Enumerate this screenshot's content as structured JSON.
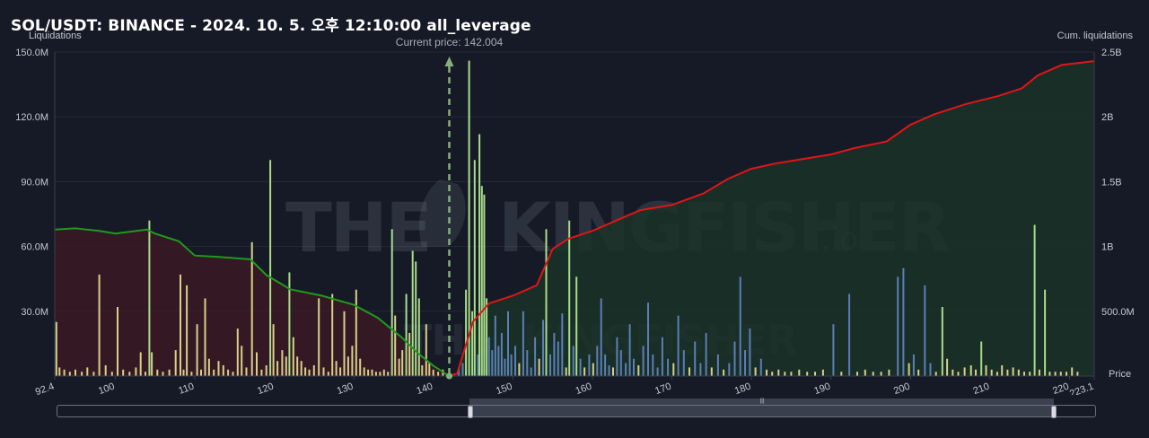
{
  "title": "SOL/USDT: BINANCE - 2024. 10. 5. 오후 12:10:00 all_leverage",
  "chart_data": {
    "type": "bar",
    "left_axis_label": "Liquidations",
    "right_axis_label": "Cum. liquidations",
    "x_axis_label": "Price",
    "current_price_label": "Current price: 142.004",
    "current_price": 142.004,
    "x_range": [
      92.4,
      223.1
    ],
    "x_ticks": [
      "92.4",
      "100",
      "110",
      "120",
      "130",
      "140",
      "150",
      "160",
      "170",
      "180",
      "190",
      "200",
      "210",
      "220",
      "223.1"
    ],
    "x_tick_values": [
      92.4,
      100,
      110,
      120,
      130,
      140,
      150,
      160,
      170,
      180,
      190,
      200,
      210,
      220,
      223.1
    ],
    "left_ylim": [
      0,
      150
    ],
    "left_ticks": [
      "30.0M",
      "60.0M",
      "90.0M",
      "120.0M",
      "150.0M"
    ],
    "left_tick_values": [
      30,
      60,
      90,
      120,
      150
    ],
    "right_ylim": [
      0,
      2.5
    ],
    "right_ticks": [
      "500.0M",
      "1B",
      "1.5B",
      "2B",
      "2.5B"
    ],
    "right_tick_values": [
      0.5,
      1,
      1.5,
      2,
      2.5
    ],
    "bars": [
      {
        "x": 92.6,
        "v": 25,
        "c": "gold"
      },
      {
        "x": 93.0,
        "v": 4,
        "c": "gold"
      },
      {
        "x": 93.6,
        "v": 3,
        "c": "gold"
      },
      {
        "x": 94.3,
        "v": 2,
        "c": "gold"
      },
      {
        "x": 95.0,
        "v": 3,
        "c": "gold"
      },
      {
        "x": 95.8,
        "v": 2,
        "c": "gold"
      },
      {
        "x": 96.5,
        "v": 4,
        "c": "gold"
      },
      {
        "x": 97.3,
        "v": 2,
        "c": "gold"
      },
      {
        "x": 98.0,
        "v": 47,
        "c": "gold"
      },
      {
        "x": 98.8,
        "v": 5,
        "c": "gold"
      },
      {
        "x": 99.6,
        "v": 2,
        "c": "gold"
      },
      {
        "x": 100.3,
        "v": 32,
        "c": "gold"
      },
      {
        "x": 101.0,
        "v": 3,
        "c": "gold"
      },
      {
        "x": 101.8,
        "v": 2,
        "c": "gold"
      },
      {
        "x": 102.6,
        "v": 4,
        "c": "gold"
      },
      {
        "x": 103.2,
        "v": 11,
        "c": "gold"
      },
      {
        "x": 103.8,
        "v": 2,
        "c": "gold"
      },
      {
        "x": 104.3,
        "v": 72,
        "c": "green"
      },
      {
        "x": 104.6,
        "v": 11,
        "c": "gold"
      },
      {
        "x": 105.3,
        "v": 3,
        "c": "gold"
      },
      {
        "x": 106.0,
        "v": 2,
        "c": "gold"
      },
      {
        "x": 106.8,
        "v": 3,
        "c": "gold"
      },
      {
        "x": 107.6,
        "v": 12,
        "c": "gold"
      },
      {
        "x": 108.2,
        "v": 47,
        "c": "gold"
      },
      {
        "x": 108.6,
        "v": 3,
        "c": "gold"
      },
      {
        "x": 109.0,
        "v": 42,
        "c": "gold"
      },
      {
        "x": 109.6,
        "v": 2,
        "c": "gold"
      },
      {
        "x": 110.3,
        "v": 24,
        "c": "gold"
      },
      {
        "x": 110.8,
        "v": 3,
        "c": "gold"
      },
      {
        "x": 111.3,
        "v": 36,
        "c": "gold"
      },
      {
        "x": 111.8,
        "v": 8,
        "c": "gold"
      },
      {
        "x": 112.4,
        "v": 3,
        "c": "gold"
      },
      {
        "x": 113.0,
        "v": 7,
        "c": "gold"
      },
      {
        "x": 113.6,
        "v": 5,
        "c": "gold"
      },
      {
        "x": 114.2,
        "v": 3,
        "c": "gold"
      },
      {
        "x": 114.8,
        "v": 2,
        "c": "gold"
      },
      {
        "x": 115.4,
        "v": 22,
        "c": "gold"
      },
      {
        "x": 115.9,
        "v": 14,
        "c": "gold"
      },
      {
        "x": 116.5,
        "v": 4,
        "c": "gold"
      },
      {
        "x": 117.2,
        "v": 62,
        "c": "gold"
      },
      {
        "x": 117.8,
        "v": 11,
        "c": "gold"
      },
      {
        "x": 118.4,
        "v": 3,
        "c": "gold"
      },
      {
        "x": 119.0,
        "v": 5,
        "c": "gold"
      },
      {
        "x": 119.5,
        "v": 100,
        "c": "green"
      },
      {
        "x": 119.9,
        "v": 24,
        "c": "gold"
      },
      {
        "x": 120.4,
        "v": 7,
        "c": "gold"
      },
      {
        "x": 121.0,
        "v": 12,
        "c": "gold"
      },
      {
        "x": 121.5,
        "v": 9,
        "c": "gold"
      },
      {
        "x": 121.9,
        "v": 48,
        "c": "green"
      },
      {
        "x": 122.4,
        "v": 18,
        "c": "gold"
      },
      {
        "x": 122.9,
        "v": 9,
        "c": "gold"
      },
      {
        "x": 123.4,
        "v": 7,
        "c": "gold"
      },
      {
        "x": 123.9,
        "v": 4,
        "c": "gold"
      },
      {
        "x": 124.4,
        "v": 3,
        "c": "gold"
      },
      {
        "x": 125.0,
        "v": 5,
        "c": "gold"
      },
      {
        "x": 125.6,
        "v": 36,
        "c": "gold"
      },
      {
        "x": 126.2,
        "v": 4,
        "c": "gold"
      },
      {
        "x": 126.8,
        "v": 2,
        "c": "gold"
      },
      {
        "x": 127.3,
        "v": 38,
        "c": "gold"
      },
      {
        "x": 127.8,
        "v": 7,
        "c": "gold"
      },
      {
        "x": 128.3,
        "v": 4,
        "c": "gold"
      },
      {
        "x": 128.8,
        "v": 30,
        "c": "gold"
      },
      {
        "x": 129.3,
        "v": 9,
        "c": "gold"
      },
      {
        "x": 129.8,
        "v": 14,
        "c": "gold"
      },
      {
        "x": 130.3,
        "v": 40,
        "c": "gold"
      },
      {
        "x": 130.8,
        "v": 8,
        "c": "gold"
      },
      {
        "x": 131.3,
        "v": 4,
        "c": "gold"
      },
      {
        "x": 131.8,
        "v": 3,
        "c": "gold"
      },
      {
        "x": 132.3,
        "v": 3,
        "c": "gold"
      },
      {
        "x": 132.8,
        "v": 2,
        "c": "gold"
      },
      {
        "x": 133.3,
        "v": 2,
        "c": "gold"
      },
      {
        "x": 133.8,
        "v": 3,
        "c": "gold"
      },
      {
        "x": 134.3,
        "v": 2,
        "c": "gold"
      },
      {
        "x": 134.8,
        "v": 68,
        "c": "green"
      },
      {
        "x": 135.2,
        "v": 28,
        "c": "gold"
      },
      {
        "x": 135.7,
        "v": 8,
        "c": "gold"
      },
      {
        "x": 136.1,
        "v": 12,
        "c": "gold"
      },
      {
        "x": 136.6,
        "v": 38,
        "c": "green"
      },
      {
        "x": 137.0,
        "v": 20,
        "c": "gold"
      },
      {
        "x": 137.4,
        "v": 58,
        "c": "green"
      },
      {
        "x": 137.8,
        "v": 53,
        "c": "green"
      },
      {
        "x": 138.2,
        "v": 36,
        "c": "green"
      },
      {
        "x": 138.6,
        "v": 5,
        "c": "gold"
      },
      {
        "x": 139.1,
        "v": 24,
        "c": "gold"
      },
      {
        "x": 139.5,
        "v": 6,
        "c": "gold"
      },
      {
        "x": 140.0,
        "v": 3,
        "c": "gold"
      },
      {
        "x": 140.6,
        "v": 2,
        "c": "gold"
      },
      {
        "x": 141.2,
        "v": 3,
        "c": "gold"
      },
      {
        "x": 143.2,
        "v": 4,
        "c": "blue"
      },
      {
        "x": 143.7,
        "v": 6,
        "c": "blue"
      },
      {
        "x": 144.1,
        "v": 40,
        "c": "green"
      },
      {
        "x": 144.5,
        "v": 146,
        "c": "green"
      },
      {
        "x": 144.9,
        "v": 30,
        "c": "green"
      },
      {
        "x": 145.2,
        "v": 100,
        "c": "green"
      },
      {
        "x": 145.6,
        "v": 10,
        "c": "blue"
      },
      {
        "x": 145.8,
        "v": 112,
        "c": "green"
      },
      {
        "x": 146.1,
        "v": 88,
        "c": "green"
      },
      {
        "x": 146.4,
        "v": 84,
        "c": "green"
      },
      {
        "x": 146.7,
        "v": 36,
        "c": "green"
      },
      {
        "x": 147.0,
        "v": 18,
        "c": "blue"
      },
      {
        "x": 147.4,
        "v": 12,
        "c": "blue"
      },
      {
        "x": 147.8,
        "v": 28,
        "c": "blue"
      },
      {
        "x": 148.2,
        "v": 14,
        "c": "blue"
      },
      {
        "x": 148.6,
        "v": 20,
        "c": "blue"
      },
      {
        "x": 149.0,
        "v": 8,
        "c": "blue"
      },
      {
        "x": 149.4,
        "v": 30,
        "c": "blue"
      },
      {
        "x": 149.8,
        "v": 10,
        "c": "blue"
      },
      {
        "x": 150.3,
        "v": 14,
        "c": "blue"
      },
      {
        "x": 150.8,
        "v": 6,
        "c": "gold"
      },
      {
        "x": 151.3,
        "v": 30,
        "c": "blue"
      },
      {
        "x": 151.8,
        "v": 12,
        "c": "blue"
      },
      {
        "x": 152.3,
        "v": 4,
        "c": "blue"
      },
      {
        "x": 152.8,
        "v": 18,
        "c": "blue"
      },
      {
        "x": 153.3,
        "v": 8,
        "c": "gold"
      },
      {
        "x": 153.8,
        "v": 26,
        "c": "blue"
      },
      {
        "x": 154.2,
        "v": 68,
        "c": "green"
      },
      {
        "x": 154.7,
        "v": 10,
        "c": "blue"
      },
      {
        "x": 155.2,
        "v": 20,
        "c": "blue"
      },
      {
        "x": 155.7,
        "v": 16,
        "c": "blue"
      },
      {
        "x": 156.2,
        "v": 29,
        "c": "blue"
      },
      {
        "x": 156.7,
        "v": 4,
        "c": "gold"
      },
      {
        "x": 157.1,
        "v": 72,
        "c": "green"
      },
      {
        "x": 157.6,
        "v": 14,
        "c": "blue"
      },
      {
        "x": 158.0,
        "v": 46,
        "c": "green"
      },
      {
        "x": 158.5,
        "v": 8,
        "c": "blue"
      },
      {
        "x": 159.0,
        "v": 4,
        "c": "gold"
      },
      {
        "x": 159.6,
        "v": 10,
        "c": "blue"
      },
      {
        "x": 160.1,
        "v": 6,
        "c": "gold"
      },
      {
        "x": 160.6,
        "v": 14,
        "c": "blue"
      },
      {
        "x": 161.1,
        "v": 36,
        "c": "blue"
      },
      {
        "x": 161.6,
        "v": 10,
        "c": "blue"
      },
      {
        "x": 162.1,
        "v": 5,
        "c": "blue"
      },
      {
        "x": 162.6,
        "v": 4,
        "c": "gold"
      },
      {
        "x": 163.1,
        "v": 18,
        "c": "blue"
      },
      {
        "x": 163.6,
        "v": 12,
        "c": "blue"
      },
      {
        "x": 164.2,
        "v": 6,
        "c": "blue"
      },
      {
        "x": 164.7,
        "v": 24,
        "c": "blue"
      },
      {
        "x": 165.2,
        "v": 8,
        "c": "blue"
      },
      {
        "x": 165.8,
        "v": 5,
        "c": "gold"
      },
      {
        "x": 166.4,
        "v": 14,
        "c": "blue"
      },
      {
        "x": 167.0,
        "v": 34,
        "c": "blue"
      },
      {
        "x": 167.6,
        "v": 10,
        "c": "blue"
      },
      {
        "x": 168.2,
        "v": 4,
        "c": "blue"
      },
      {
        "x": 168.8,
        "v": 18,
        "c": "blue"
      },
      {
        "x": 169.5,
        "v": 8,
        "c": "blue"
      },
      {
        "x": 170.2,
        "v": 6,
        "c": "gold"
      },
      {
        "x": 170.8,
        "v": 28,
        "c": "blue"
      },
      {
        "x": 171.5,
        "v": 12,
        "c": "blue"
      },
      {
        "x": 172.2,
        "v": 4,
        "c": "gold"
      },
      {
        "x": 172.9,
        "v": 16,
        "c": "blue"
      },
      {
        "x": 173.6,
        "v": 6,
        "c": "blue"
      },
      {
        "x": 174.3,
        "v": 20,
        "c": "blue"
      },
      {
        "x": 175.0,
        "v": 4,
        "c": "gold"
      },
      {
        "x": 175.8,
        "v": 10,
        "c": "blue"
      },
      {
        "x": 176.5,
        "v": 3,
        "c": "gold"
      },
      {
        "x": 177.2,
        "v": 6,
        "c": "blue"
      },
      {
        "x": 177.9,
        "v": 16,
        "c": "blue"
      },
      {
        "x": 178.6,
        "v": 46,
        "c": "blue"
      },
      {
        "x": 179.2,
        "v": 12,
        "c": "blue"
      },
      {
        "x": 179.8,
        "v": 22,
        "c": "blue"
      },
      {
        "x": 180.5,
        "v": 4,
        "c": "gold"
      },
      {
        "x": 181.2,
        "v": 8,
        "c": "blue"
      },
      {
        "x": 181.9,
        "v": 3,
        "c": "gold"
      },
      {
        "x": 182.6,
        "v": 2,
        "c": "gold"
      },
      {
        "x": 183.4,
        "v": 3,
        "c": "gold"
      },
      {
        "x": 184.2,
        "v": 2,
        "c": "gold"
      },
      {
        "x": 185.0,
        "v": 2,
        "c": "gold"
      },
      {
        "x": 186.0,
        "v": 3,
        "c": "gold"
      },
      {
        "x": 187.0,
        "v": 2,
        "c": "gold"
      },
      {
        "x": 188.0,
        "v": 2,
        "c": "gold"
      },
      {
        "x": 189.0,
        "v": 3,
        "c": "gold"
      },
      {
        "x": 190.3,
        "v": 24,
        "c": "blue"
      },
      {
        "x": 191.3,
        "v": 2,
        "c": "gold"
      },
      {
        "x": 192.3,
        "v": 38,
        "c": "blue"
      },
      {
        "x": 193.3,
        "v": 2,
        "c": "gold"
      },
      {
        "x": 194.3,
        "v": 3,
        "c": "gold"
      },
      {
        "x": 195.3,
        "v": 2,
        "c": "gold"
      },
      {
        "x": 196.3,
        "v": 2,
        "c": "gold"
      },
      {
        "x": 197.3,
        "v": 3,
        "c": "gold"
      },
      {
        "x": 198.4,
        "v": 46,
        "c": "blue"
      },
      {
        "x": 199.1,
        "v": 50,
        "c": "blue"
      },
      {
        "x": 199.8,
        "v": 6,
        "c": "gold"
      },
      {
        "x": 200.4,
        "v": 10,
        "c": "blue"
      },
      {
        "x": 201.0,
        "v": 3,
        "c": "gold"
      },
      {
        "x": 201.8,
        "v": 42,
        "c": "blue"
      },
      {
        "x": 202.5,
        "v": 6,
        "c": "blue"
      },
      {
        "x": 203.2,
        "v": 2,
        "c": "gold"
      },
      {
        "x": 204.0,
        "v": 32,
        "c": "green"
      },
      {
        "x": 204.6,
        "v": 8,
        "c": "gold"
      },
      {
        "x": 205.3,
        "v": 3,
        "c": "gold"
      },
      {
        "x": 206.0,
        "v": 2,
        "c": "gold"
      },
      {
        "x": 206.8,
        "v": 4,
        "c": "gold"
      },
      {
        "x": 207.6,
        "v": 5,
        "c": "gold"
      },
      {
        "x": 208.2,
        "v": 3,
        "c": "gold"
      },
      {
        "x": 208.9,
        "v": 16,
        "c": "green"
      },
      {
        "x": 209.5,
        "v": 5,
        "c": "gold"
      },
      {
        "x": 210.2,
        "v": 3,
        "c": "gold"
      },
      {
        "x": 210.9,
        "v": 2,
        "c": "gold"
      },
      {
        "x": 211.5,
        "v": 5,
        "c": "gold"
      },
      {
        "x": 212.2,
        "v": 3,
        "c": "gold"
      },
      {
        "x": 212.9,
        "v": 4,
        "c": "gold"
      },
      {
        "x": 213.6,
        "v": 3,
        "c": "gold"
      },
      {
        "x": 214.3,
        "v": 2,
        "c": "gold"
      },
      {
        "x": 215.0,
        "v": 2,
        "c": "gold"
      },
      {
        "x": 215.6,
        "v": 70,
        "c": "green"
      },
      {
        "x": 216.2,
        "v": 3,
        "c": "gold"
      },
      {
        "x": 216.9,
        "v": 40,
        "c": "green"
      },
      {
        "x": 217.5,
        "v": 2,
        "c": "gold"
      },
      {
        "x": 218.2,
        "v": 2,
        "c": "gold"
      },
      {
        "x": 218.9,
        "v": 2,
        "c": "gold"
      },
      {
        "x": 219.6,
        "v": 2,
        "c": "gold"
      },
      {
        "x": 220.3,
        "v": 4,
        "c": "gold"
      },
      {
        "x": 221.0,
        "v": 2,
        "c": "gold"
      }
    ],
    "cum_short": [
      [
        92.4,
        1.13
      ],
      [
        95,
        1.14
      ],
      [
        98,
        1.12
      ],
      [
        100,
        1.1
      ],
      [
        104,
        1.13
      ],
      [
        105,
        1.1
      ],
      [
        108,
        1.04
      ],
      [
        110,
        0.93
      ],
      [
        113,
        0.92
      ],
      [
        117,
        0.9
      ],
      [
        119,
        0.78
      ],
      [
        122,
        0.67
      ],
      [
        126,
        0.62
      ],
      [
        130,
        0.55
      ],
      [
        133,
        0.45
      ],
      [
        136,
        0.3
      ],
      [
        138,
        0.18
      ],
      [
        140,
        0.08
      ],
      [
        141.5,
        0.02
      ],
      [
        142.004,
        0
      ]
    ],
    "cum_long": [
      [
        142.004,
        0
      ],
      [
        143,
        0.02
      ],
      [
        144,
        0.22
      ],
      [
        145,
        0.42
      ],
      [
        147,
        0.56
      ],
      [
        150,
        0.62
      ],
      [
        153,
        0.7
      ],
      [
        155,
        0.98
      ],
      [
        157,
        1.06
      ],
      [
        160,
        1.12
      ],
      [
        163,
        1.2
      ],
      [
        166,
        1.28
      ],
      [
        170,
        1.32
      ],
      [
        174,
        1.41
      ],
      [
        177,
        1.52
      ],
      [
        180,
        1.6
      ],
      [
        183,
        1.64
      ],
      [
        187,
        1.68
      ],
      [
        190,
        1.71
      ],
      [
        193,
        1.76
      ],
      [
        197,
        1.81
      ],
      [
        200,
        1.94
      ],
      [
        203,
        2.02
      ],
      [
        207,
        2.1
      ],
      [
        211,
        2.16
      ],
      [
        214,
        2.22
      ],
      [
        216,
        2.32
      ],
      [
        219,
        2.4
      ],
      [
        223.1,
        2.43
      ]
    ]
  }
}
